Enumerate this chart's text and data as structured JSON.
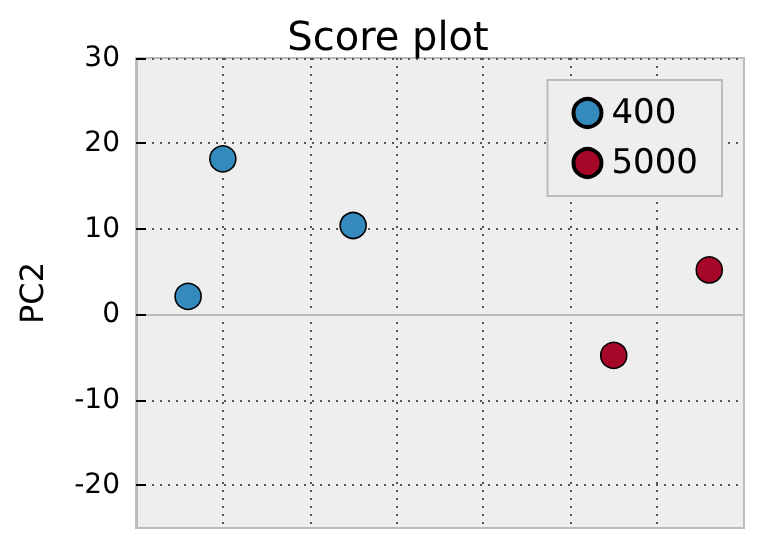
{
  "chart_data": {
    "type": "scatter",
    "title": "Score plot",
    "ylabel": "PC2",
    "categories": [
      null,
      null,
      null,
      null,
      null,
      null,
      null,
      null,
      null,
      null,
      null,
      null,
      null,
      null,
      null,
      null,
      null,
      null,
      null,
      null,
      null,
      null,
      null,
      null,
      null,
      null,
      null,
      null,
      null,
      null,
      null,
      null,
      null,
      null,
      null,
      null,
      null,
      null,
      null,
      null,
      null,
      null,
      null,
      null,
      null,
      null,
      null,
      null,
      null,
      null,
      null,
      null,
      null,
      null,
      null,
      null,
      null,
      null,
      null,
      null,
      null,
      null,
      null,
      null,
      null,
      null,
      null,
      null,
      null,
      null,
      null
    ],
    "ylim": [
      -25,
      30
    ],
    "yticks": [
      -20,
      -10,
      0,
      10,
      20,
      30
    ],
    "grid": true,
    "legend": "top right",
    "marker": "circle",
    "series": [
      {
        "name": "400",
        "color": "#348abd",
        "values": [
          null,
          null,
          null,
          null,
          null,
          null,
          2.1,
          null,
          null,
          null,
          18.2,
          null,
          null,
          null,
          null,
          null,
          null,
          null,
          null,
          null,
          null,
          null,
          null,
          null,
          null,
          10.4,
          null,
          null,
          null,
          null,
          null,
          null,
          null,
          null,
          null,
          null,
          null,
          null,
          null,
          null,
          null,
          null,
          null,
          null,
          null,
          null,
          null,
          null,
          null,
          null,
          null,
          null,
          null,
          null,
          null,
          null,
          null,
          null,
          null,
          null,
          null,
          null,
          null,
          null,
          null,
          null,
          null,
          null,
          null,
          null,
          null
        ]
      },
      {
        "name": "5000",
        "color": "#a60628",
        "values": [
          null,
          null,
          null,
          null,
          null,
          null,
          null,
          null,
          null,
          null,
          null,
          null,
          null,
          null,
          null,
          null,
          null,
          null,
          null,
          null,
          null,
          null,
          null,
          null,
          null,
          null,
          null,
          null,
          null,
          null,
          null,
          null,
          null,
          null,
          null,
          null,
          null,
          null,
          null,
          null,
          null,
          null,
          null,
          null,
          null,
          null,
          null,
          null,
          null,
          null,
          null,
          null,
          null,
          null,
          null,
          -4.8,
          null,
          null,
          null,
          null,
          null,
          null,
          null,
          null,
          null,
          null,
          5.2,
          null,
          null,
          null,
          null
        ]
      }
    ]
  }
}
